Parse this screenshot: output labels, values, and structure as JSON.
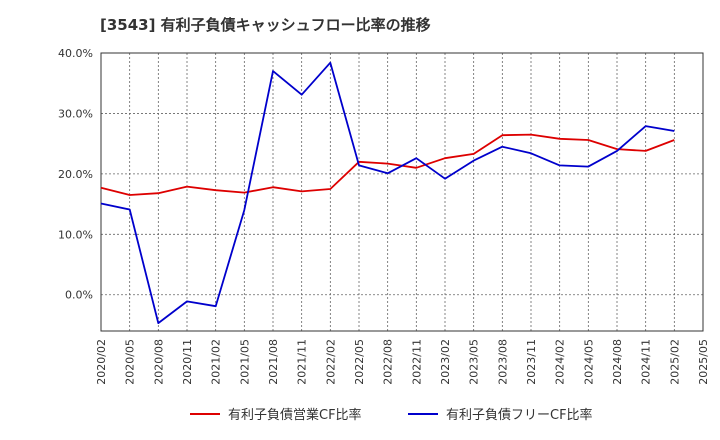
{
  "chart_data": {
    "type": "line",
    "title": "[3543]  有利子負債キャッシュフロー比率の推移",
    "x": [
      "2020/02",
      "2020/05",
      "2020/08",
      "2020/11",
      "2021/02",
      "2021/05",
      "2021/08",
      "2021/11",
      "2022/02",
      "2022/05",
      "2022/08",
      "2022/11",
      "2023/02",
      "2023/05",
      "2023/08",
      "2023/11",
      "2024/02",
      "2024/05",
      "2024/08",
      "2024/11",
      "2025/02",
      "2025/05"
    ],
    "y_ticks": [
      "40.0%",
      "30.0%",
      "20.0%",
      "10.0%",
      "0.0%"
    ],
    "ylim": [
      -6,
      40
    ],
    "grid": true,
    "legend_position": "bottom",
    "series": [
      {
        "name": "有利子負債営業CF比率",
        "color": "#dd0000",
        "values": [
          17.7,
          16.5,
          16.8,
          17.9,
          17.3,
          16.9,
          17.8,
          17.1,
          17.5,
          22.0,
          21.7,
          21.0,
          22.6,
          23.3,
          26.4,
          26.5,
          25.8,
          25.6,
          24.1,
          23.8,
          25.6,
          null
        ]
      },
      {
        "name": "有利子負債フリーCF比率",
        "color": "#0000cc",
        "values": [
          15.1,
          14.1,
          -4.7,
          -1.1,
          -1.9,
          14.0,
          37.0,
          33.1,
          38.4,
          21.4,
          20.1,
          22.6,
          19.2,
          22.2,
          24.5,
          23.4,
          21.4,
          21.2,
          23.8,
          27.9,
          27.1,
          null
        ]
      }
    ]
  }
}
